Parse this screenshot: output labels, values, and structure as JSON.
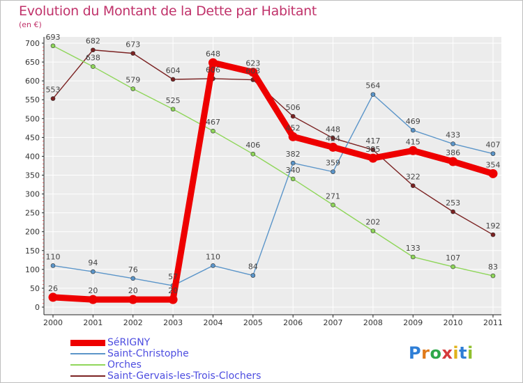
{
  "title": "Evolution du Montant de la Dette par Habitant",
  "unit_label": "(en €)",
  "logo": {
    "text": "Proxiti",
    "letters": [
      "P",
      "r",
      "o",
      "x",
      "i",
      "t",
      "i"
    ],
    "colors": [
      "#2e7ed6",
      "#e07a1a",
      "#2ea84a",
      "#d63a3a",
      "#e0b21a",
      "#2e7ed6",
      "#8fbf2e"
    ]
  },
  "chart_data": {
    "type": "line",
    "x": [
      "2000",
      "2001",
      "2002",
      "2003",
      "2004",
      "2005",
      "2006",
      "2007",
      "2008",
      "2009",
      "2010",
      "2011"
    ],
    "ylim": [
      0,
      700
    ],
    "yticks": [
      0,
      50,
      100,
      150,
      200,
      250,
      300,
      350,
      400,
      450,
      500,
      550,
      600,
      650,
      700
    ],
    "grid": true,
    "legend_position": "bottom-left",
    "series": [
      {
        "name": "Saint-Gervais-les-Trois-Clochers",
        "color": "#7b2222",
        "width": 1.4,
        "values": [
          553,
          682,
          673,
          604,
          606,
          603,
          506,
          448,
          417,
          322,
          253,
          192
        ],
        "labels": [
          "553",
          "682",
          "673",
          "604",
          "606",
          "603",
          "506",
          "448",
          "417",
          "322",
          "253",
          "192"
        ]
      },
      {
        "name": "Orches",
        "color": "#8fd65a",
        "width": 1.4,
        "values": [
          693,
          638,
          579,
          525,
          467,
          406,
          340,
          271,
          202,
          133,
          107,
          83
        ],
        "labels": [
          "693",
          "638",
          "579",
          "525",
          "467",
          "406",
          "340",
          "271",
          "202",
          "133",
          "107",
          "83"
        ]
      },
      {
        "name": "Saint-Christophe",
        "color": "#5b95c9",
        "width": 1.4,
        "values": [
          110,
          94,
          76,
          57,
          110,
          84,
          382,
          359,
          564,
          469,
          433,
          407
        ],
        "labels": [
          "110",
          "94",
          "76",
          "57",
          "110",
          "84",
          "382",
          "359",
          "564",
          "469",
          "433",
          "407"
        ]
      },
      {
        "name": "SéRIGNY",
        "color": "#ee0000",
        "width": 9,
        "values": [
          26,
          20,
          20,
          20,
          648,
          623,
          452,
          424,
          395,
          415,
          386,
          354
        ],
        "labels": [
          "26",
          "20",
          "20",
          "20",
          "648",
          "623",
          "452",
          "424",
          "395",
          "415",
          "386",
          "354"
        ]
      }
    ],
    "legend": [
      {
        "name": "SéRIGNY",
        "color": "#ee0000",
        "thickness": 9
      },
      {
        "name": "Saint-Christophe",
        "color": "#5b95c9",
        "thickness": 2
      },
      {
        "name": "Orches",
        "color": "#8fd65a",
        "thickness": 2
      },
      {
        "name": "Saint-Gervais-les-Trois-Clochers",
        "color": "#7b2222",
        "thickness": 2
      }
    ]
  }
}
